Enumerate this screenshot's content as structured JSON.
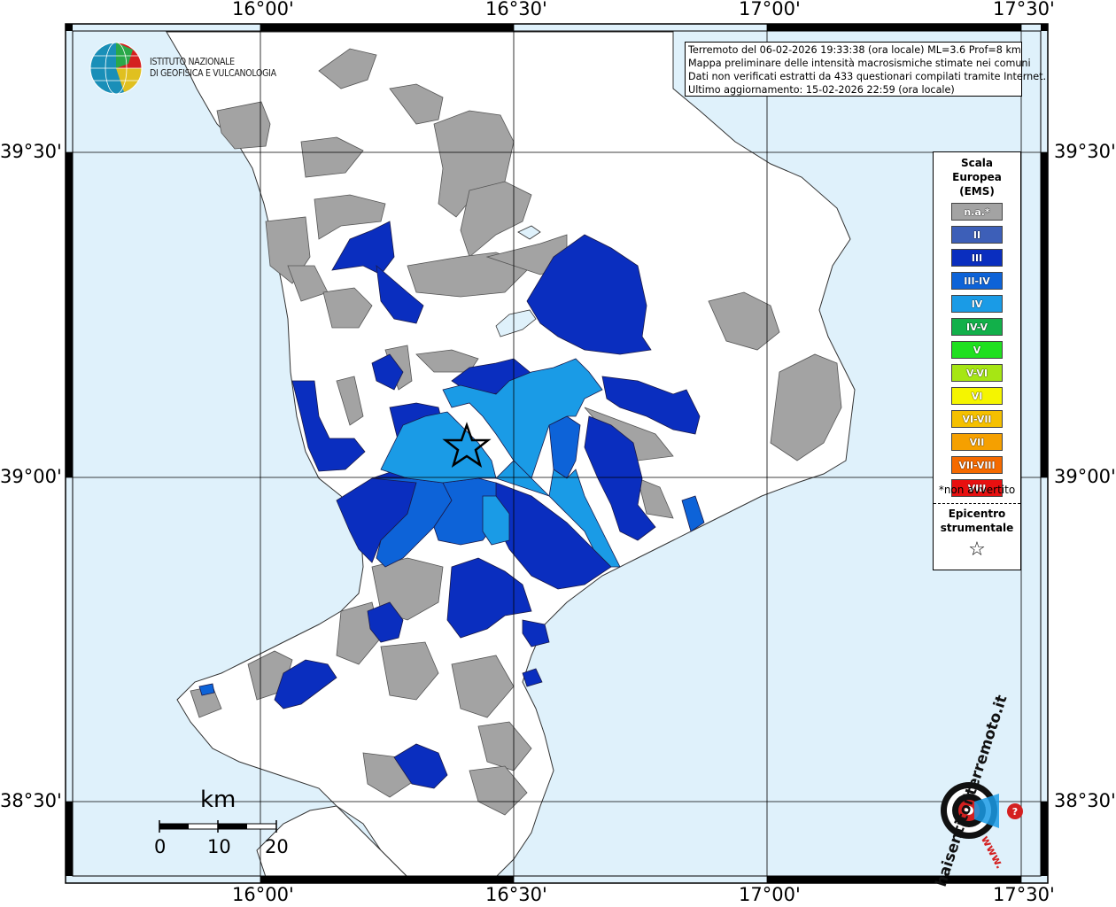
{
  "map": {
    "info_lines": [
      "Terremoto del 06-02-2026 19:33:38 (ora locale) ML=3.6 Prof=8 km",
      "Mappa preliminare delle intensità macrosismiche stimate nei comuni",
      "Dati non verificati estratti da 433 questionari compilati tramite Internet.",
      "Ultimo aggiornamento: 15-02-2026 22:59 (ora locale)"
    ],
    "lon_labels": [
      "16°00'",
      "16°30'",
      "17°00'",
      "17°30'"
    ],
    "lat_labels": [
      "39°30'",
      "39°00'",
      "38°30'"
    ],
    "institute": {
      "line1": "ISTITUTO NAZIONALE",
      "line2": "DI GEOFISICA E VULCANOLOGIA"
    },
    "scale_bar": {
      "unit": "km",
      "labels": [
        "0",
        "10",
        "20"
      ]
    },
    "watermark": {
      "brand": "haisentitoilterremoto.it",
      "url_prefix": "www."
    }
  },
  "legend": {
    "title_lines": [
      "Scala",
      "Europea",
      "(EMS)"
    ],
    "items": [
      {
        "label": "n.a.*",
        "color": "#a3a3a3"
      },
      {
        "label": "II",
        "color": "#3d5fb8"
      },
      {
        "label": "III",
        "color": "#0a2ebf"
      },
      {
        "label": "III-IV",
        "color": "#0d63d8"
      },
      {
        "label": "IV",
        "color": "#1a9be6"
      },
      {
        "label": "IV-V",
        "color": "#12b04a"
      },
      {
        "label": "V",
        "color": "#20e020"
      },
      {
        "label": "V-VI",
        "color": "#a6e614"
      },
      {
        "label": "VI",
        "color": "#f5f500"
      },
      {
        "label": "VI-VII",
        "color": "#f5c000"
      },
      {
        "label": "VII",
        "color": "#f5a000"
      },
      {
        "label": "VII-VIII",
        "color": "#f56a00"
      },
      {
        "label": "VIII",
        "color": "#e81010"
      }
    ],
    "note": "*non avvertito",
    "epicenter_title": [
      "Epicentro",
      "strumentale"
    ],
    "epicenter_symbol": "☆"
  },
  "colors": {
    "sea": "#dff1fb",
    "land": "#ffffff",
    "na": "#a3a3a3",
    "int_III": "#0a2ebf",
    "int_III_IV": "#0d63d8",
    "int_IV": "#1a9be6",
    "frame": "#000000"
  }
}
